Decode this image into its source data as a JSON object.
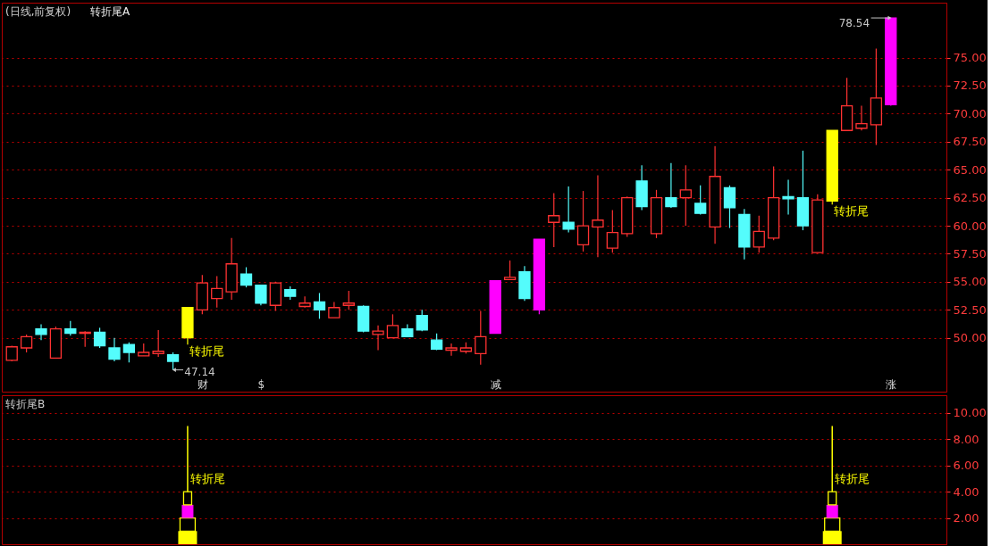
{
  "chart_data": [
    {
      "type": "candlestick",
      "title": "(日线,前复权)",
      "subtitle": "转折尾A",
      "categories": [
        null,
        null,
        null,
        null,
        null,
        null,
        null,
        null,
        null,
        null,
        null,
        null,
        null,
        "财",
        null,
        null,
        null,
        "$",
        null,
        null,
        null,
        null,
        null,
        null,
        null,
        null,
        null,
        null,
        null,
        null,
        null,
        null,
        null,
        "减",
        null,
        null,
        null,
        null,
        null,
        null,
        null,
        null,
        null,
        null,
        null,
        null,
        null,
        null,
        null,
        null,
        null,
        null,
        null,
        null,
        null,
        null,
        null,
        null,
        null,
        null,
        "涨"
      ],
      "ohlc": [
        [
          48.0,
          49.3,
          47.9,
          49.2
        ],
        [
          49.1,
          50.3,
          48.7,
          50.1
        ],
        [
          50.8,
          51.2,
          49.8,
          50.3
        ],
        [
          48.2,
          51.0,
          48.2,
          50.8
        ],
        [
          50.8,
          51.5,
          50.2,
          50.4
        ],
        [
          50.4,
          50.6,
          49.2,
          50.5
        ],
        [
          50.5,
          50.9,
          49.1,
          49.3
        ],
        [
          49.1,
          50.0,
          47.9,
          48.1
        ],
        [
          49.4,
          49.6,
          47.8,
          48.7
        ],
        [
          48.4,
          49.5,
          48.4,
          48.7
        ],
        [
          48.6,
          50.7,
          48.3,
          48.8
        ],
        [
          48.5,
          48.7,
          47.14,
          47.9
        ],
        [
          50.0,
          52.7,
          49.4,
          52.7
        ],
        [
          52.5,
          55.6,
          52.1,
          54.9
        ],
        [
          53.5,
          55.5,
          52.7,
          54.4
        ],
        [
          54.1,
          58.9,
          53.4,
          56.6
        ],
        [
          55.7,
          56.3,
          54.5,
          54.7
        ],
        [
          54.7,
          54.7,
          52.9,
          53.1
        ],
        [
          52.9,
          55.0,
          52.4,
          54.9
        ],
        [
          54.3,
          54.6,
          53.4,
          53.7
        ],
        [
          52.8,
          53.7,
          52.7,
          53.1
        ],
        [
          53.2,
          54.0,
          51.7,
          52.5
        ],
        [
          51.8,
          53.2,
          51.8,
          52.7
        ],
        [
          52.9,
          54.2,
          52.5,
          53.1
        ],
        [
          52.8,
          52.9,
          50.5,
          50.6
        ],
        [
          50.3,
          51.1,
          48.9,
          50.6
        ],
        [
          50.0,
          52.1,
          50.0,
          51.1
        ],
        [
          50.8,
          51.2,
          50.1,
          50.1
        ],
        [
          52.0,
          52.5,
          50.6,
          50.7
        ],
        [
          49.8,
          50.4,
          48.9,
          49.0
        ],
        [
          48.9,
          49.5,
          48.4,
          49.1
        ],
        [
          48.8,
          49.6,
          48.6,
          49.1
        ],
        [
          48.6,
          52.4,
          47.6,
          50.1
        ],
        [
          50.4,
          55.1,
          50.4,
          55.1
        ],
        [
          55.2,
          56.9,
          55.2,
          55.4
        ],
        [
          55.9,
          56.4,
          53.3,
          53.5
        ],
        [
          52.5,
          58.8,
          52.1,
          58.8
        ],
        [
          60.3,
          62.9,
          58.1,
          60.9
        ],
        [
          60.3,
          63.5,
          59.4,
          59.7
        ],
        [
          58.3,
          63.1,
          57.7,
          60.0
        ],
        [
          59.9,
          64.5,
          57.2,
          60.5
        ],
        [
          58.0,
          61.4,
          57.6,
          59.4
        ],
        [
          59.3,
          62.6,
          59.0,
          62.5
        ],
        [
          64.0,
          65.4,
          61.4,
          61.7
        ],
        [
          59.3,
          63.2,
          58.9,
          62.5
        ],
        [
          62.5,
          65.6,
          61.6,
          61.7
        ],
        [
          62.5,
          65.4,
          60.0,
          63.2
        ],
        [
          62.0,
          63.6,
          61.0,
          61.1
        ],
        [
          59.9,
          67.1,
          58.4,
          64.4
        ],
        [
          63.4,
          63.6,
          59.8,
          61.6
        ],
        [
          61.0,
          61.5,
          57.0,
          58.1
        ],
        [
          58.1,
          60.9,
          57.6,
          59.5
        ],
        [
          58.9,
          65.3,
          58.7,
          62.5
        ],
        [
          62.6,
          64.1,
          61.0,
          62.4
        ],
        [
          62.5,
          66.7,
          59.6,
          60.0
        ],
        [
          57.6,
          62.8,
          57.6,
          62.3
        ],
        [
          62.2,
          68.5,
          61.9,
          68.5
        ],
        [
          68.5,
          73.2,
          68.5,
          70.7
        ],
        [
          68.7,
          70.7,
          68.5,
          69.1
        ],
        [
          69.0,
          75.8,
          67.2,
          71.4
        ],
        [
          70.8,
          78.54,
          70.7,
          78.54
        ]
      ],
      "colors": [
        "#ff3232",
        "#ff3232",
        "#54fcfc",
        "#ff3232",
        "#54fcfc",
        "#ff3232",
        "#54fcfc",
        "#54fcfc",
        "#54fcfc",
        "#ff3232",
        "#ff3232",
        "#54fcfc",
        "#ffff00",
        "#ff3232",
        "#ff3232",
        "#ff3232",
        "#54fcfc",
        "#54fcfc",
        "#ff3232",
        "#54fcfc",
        "#ff3232",
        "#54fcfc",
        "#ff3232",
        "#ff3232",
        "#54fcfc",
        "#ff3232",
        "#ff3232",
        "#54fcfc",
        "#54fcfc",
        "#54fcfc",
        "#ff3232",
        "#ff3232",
        "#ff3232",
        "#ff00ff",
        "#ff3232",
        "#54fcfc",
        "#ff00ff",
        "#ff3232",
        "#54fcfc",
        "#ff3232",
        "#ff3232",
        "#ff3232",
        "#ff3232",
        "#54fcfc",
        "#ff3232",
        "#54fcfc",
        "#ff3232",
        "#54fcfc",
        "#ff3232",
        "#54fcfc",
        "#54fcfc",
        "#ff3232",
        "#ff3232",
        "#54fcfc",
        "#54fcfc",
        "#ff3232",
        "#ffff00",
        "#ff3232",
        "#ff3232",
        "#ff3232",
        "#ff00ff"
      ],
      "value_labels": [
        null,
        null,
        null,
        null,
        null,
        null,
        null,
        null,
        null,
        null,
        null,
        "47.14",
        "转折尾",
        null,
        null,
        null,
        null,
        null,
        null,
        null,
        null,
        null,
        null,
        null,
        null,
        null,
        null,
        null,
        null,
        null,
        null,
        null,
        null,
        null,
        null,
        null,
        null,
        null,
        null,
        null,
        null,
        null,
        null,
        null,
        null,
        null,
        null,
        null,
        null,
        null,
        null,
        null,
        null,
        null,
        null,
        null,
        "转折尾",
        null,
        null,
        null,
        "78.54"
      ],
      "ylim": [
        45.2,
        79.9
      ],
      "yticks": [
        {
          "value": 50,
          "label": "50.00"
        },
        {
          "value": 52.5,
          "label": "52.50"
        },
        {
          "value": 55,
          "label": "55.00"
        },
        {
          "value": 57.5,
          "label": "57.50"
        },
        {
          "value": 60,
          "label": "60.00"
        },
        {
          "value": 62.5,
          "label": "62.50"
        },
        {
          "value": 65,
          "label": "65.00"
        },
        {
          "value": 67.5,
          "label": "67.50"
        },
        {
          "value": 70,
          "label": "70.00"
        },
        {
          "value": 72.5,
          "label": "72.50"
        },
        {
          "value": 75,
          "label": "75.00"
        }
      ],
      "grid": "y"
    },
    {
      "type": "bar",
      "title": "转折尾B",
      "stacked": true,
      "tick_labels": "y",
      "categories": [
        null,
        null,
        null,
        null,
        null,
        null,
        null,
        null,
        null,
        null,
        null,
        null,
        null,
        null,
        null,
        null,
        null,
        null,
        null,
        null,
        null,
        null,
        null,
        null,
        null,
        null,
        null,
        null,
        null,
        null,
        null,
        null,
        null,
        null,
        null,
        null,
        null,
        null,
        null,
        null,
        null,
        null,
        null,
        null,
        null,
        null,
        null,
        null,
        null,
        null,
        null,
        null,
        null,
        null,
        null,
        null,
        null,
        null,
        null,
        null,
        null
      ],
      "series": [
        {
          "color": "#ffff00",
          "values": [
            null,
            null,
            null,
            null,
            null,
            null,
            null,
            null,
            null,
            null,
            null,
            null,
            1,
            null,
            null,
            null,
            null,
            null,
            null,
            null,
            null,
            null,
            null,
            null,
            null,
            null,
            null,
            null,
            null,
            null,
            null,
            null,
            null,
            null,
            null,
            null,
            null,
            null,
            null,
            null,
            null,
            null,
            null,
            null,
            null,
            null,
            null,
            null,
            null,
            null,
            null,
            null,
            null,
            null,
            null,
            null,
            1,
            null,
            null,
            null,
            null
          ]
        },
        {
          "color": "#ffff00",
          "values": [
            null,
            null,
            null,
            null,
            null,
            null,
            null,
            null,
            null,
            null,
            null,
            null,
            1,
            null,
            null,
            null,
            null,
            null,
            null,
            null,
            null,
            null,
            null,
            null,
            null,
            null,
            null,
            null,
            null,
            null,
            null,
            null,
            null,
            null,
            null,
            null,
            null,
            null,
            null,
            null,
            null,
            null,
            null,
            null,
            null,
            null,
            null,
            null,
            null,
            null,
            null,
            null,
            null,
            null,
            null,
            null,
            1,
            null,
            null,
            null,
            null
          ]
        },
        {
          "color": "#ff00ff",
          "values": [
            null,
            null,
            null,
            null,
            null,
            null,
            null,
            null,
            null,
            null,
            null,
            null,
            1,
            null,
            null,
            null,
            null,
            null,
            null,
            null,
            null,
            null,
            null,
            null,
            null,
            null,
            null,
            null,
            null,
            null,
            null,
            null,
            null,
            null,
            null,
            null,
            null,
            null,
            null,
            null,
            null,
            null,
            null,
            null,
            null,
            null,
            null,
            null,
            null,
            null,
            null,
            null,
            null,
            null,
            null,
            null,
            1,
            null,
            null,
            null,
            null
          ]
        },
        {
          "color": "#ffff00",
          "values": [
            null,
            null,
            null,
            null,
            null,
            null,
            null,
            null,
            null,
            null,
            null,
            null,
            1,
            null,
            null,
            null,
            null,
            null,
            null,
            null,
            null,
            null,
            null,
            null,
            null,
            null,
            null,
            null,
            null,
            null,
            null,
            null,
            null,
            null,
            null,
            null,
            null,
            null,
            null,
            null,
            null,
            null,
            null,
            null,
            null,
            null,
            null,
            null,
            null,
            null,
            null,
            null,
            null,
            null,
            null,
            null,
            1,
            null,
            null,
            null,
            null
          ]
        },
        {
          "name": "转折尾",
          "color": "#ffff00",
          "values": [
            null,
            null,
            null,
            null,
            null,
            null,
            null,
            null,
            null,
            null,
            null,
            null,
            5,
            null,
            null,
            null,
            null,
            null,
            null,
            null,
            null,
            null,
            null,
            null,
            null,
            null,
            null,
            null,
            null,
            null,
            null,
            null,
            null,
            null,
            null,
            null,
            null,
            null,
            null,
            null,
            null,
            null,
            null,
            null,
            null,
            null,
            null,
            null,
            null,
            null,
            null,
            null,
            null,
            null,
            null,
            null,
            5,
            null,
            null,
            null,
            null
          ]
        }
      ],
      "ylim": [
        0,
        11.35
      ],
      "yticks": [
        {
          "value": 2,
          "label": "2.00"
        },
        {
          "value": 4,
          "label": "4.00"
        },
        {
          "value": 6,
          "label": "6.00"
        },
        {
          "value": 8,
          "label": "8.00"
        },
        {
          "value": 10,
          "label": "10.00"
        }
      ],
      "grid": "y"
    }
  ]
}
